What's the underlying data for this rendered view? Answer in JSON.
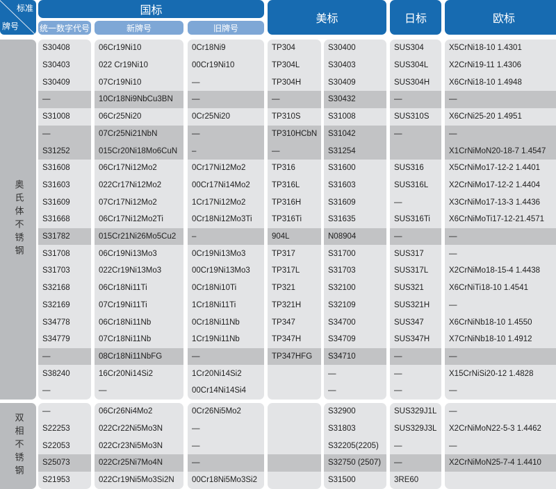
{
  "header": {
    "corner_top": "标准",
    "corner_bottom": "牌号",
    "gb": "国标",
    "gb_sub": [
      "统一数字代号",
      "新牌号",
      "旧牌号"
    ],
    "us": "美标",
    "jp": "日标",
    "eu": "欧标"
  },
  "colors": {
    "header": "#176bb1",
    "subheader": "#7ea7d6",
    "row": "#e3e4e6",
    "row_highlight": "#c2c3c5",
    "side": "#b9bbbe"
  },
  "groups": [
    {
      "label": "奥氏体不锈钢",
      "rows": [
        {
          "c": [
            "S30408",
            "06Cr19Ni10",
            "0Cr18Ni9",
            "TP304",
            "S30400",
            "SUS304",
            "X5CrNi18-10 1.4301"
          ]
        },
        {
          "c": [
            "S30403",
            "022 Cr19Ni10",
            "00Cr19Ni10",
            "TP304L",
            "S30403",
            "SUS304L",
            "X2CrNi19-11  1.4306"
          ]
        },
        {
          "c": [
            "S30409",
            "07Cr19Ni10",
            "—",
            "TP304H",
            "S30409",
            "SUS304H",
            "X6CrNi18-10  1.4948"
          ]
        },
        {
          "c": [
            "—",
            "10Cr18Ni9NbCu3BN",
            "—",
            "—",
            "S30432",
            "—",
            "—"
          ],
          "highlighted": true
        },
        {
          "c": [
            "S31008",
            "06Cr25Ni20",
            "0Cr25Ni20",
            "TP310S",
            "S31008",
            "SUS310S",
            "X6CrNi25-20 1.4951"
          ]
        },
        {
          "c": [
            "—",
            "07Cr25Ni21NbN",
            "—",
            "TP310HCbN",
            "S31042",
            "—",
            "—"
          ],
          "highlighted": true
        },
        {
          "c": [
            "S31252",
            "015Cr20Ni18Mo6CuN",
            "–",
            "—",
            "S31254",
            "",
            "X1CrNiMoN20-18-7 1.4547"
          ],
          "highlighted": true
        },
        {
          "c": [
            "S31608",
            "06Cr17Ni12Mo2",
            "0Cr17Ni12Mo2",
            "TP316",
            "S31600",
            "SUS316",
            "X5CrNiMo17-12-2 1.4401"
          ]
        },
        {
          "c": [
            "S31603",
            "022Cr17Ni12Mo2",
            "00Cr17Ni14Mo2",
            "TP316L",
            "S31603",
            "SUS316L",
            "X2CrNiMo17-12-2 1.4404"
          ]
        },
        {
          "c": [
            "S31609",
            "07Cr17Ni12Mo2",
            "1Cr17Ni12Mo2",
            "TP316H",
            "S31609",
            "—",
            "X3CrNiMo17-13-3 1.4436"
          ]
        },
        {
          "c": [
            "S31668",
            "06Cr17Ni12Mo2Ti",
            "0Cr18Ni12Mo3Ti",
            "TP316Ti",
            "S31635",
            "SUS316Ti",
            "X6CrNiMoTi17-12-21.4571"
          ]
        },
        {
          "c": [
            "S31782",
            "015Cr21Ni26Mo5Cu2",
            "–",
            "904L",
            "N08904",
            "—",
            "—"
          ],
          "highlighted": true
        },
        {
          "c": [
            "S31708",
            "06Cr19Ni13Mo3",
            "0Cr19Ni13Mo3",
            "TP317",
            "S31700",
            "SUS317",
            "—"
          ]
        },
        {
          "c": [
            "S31703",
            "022Cr19Ni13Mo3",
            "00Cr19Ni13Mo3",
            "TP317L",
            "S31703",
            "SUS317L",
            "X2CrNiMo18-15-4 1.4438"
          ]
        },
        {
          "c": [
            "S32168",
            "06Cr18Ni11Ti",
            "0Cr18Ni10Ti",
            "TP321",
            "S32100",
            "SUS321",
            "X6CrNiTi18-10 1.4541"
          ]
        },
        {
          "c": [
            "S32169",
            "07Cr19Ni11Ti",
            "1Cr18Ni11Ti",
            "TP321H",
            "S32109",
            "SUS321H",
            "—"
          ]
        },
        {
          "c": [
            "S34778",
            "06Cr18Ni11Nb",
            "0Cr18Ni11Nb",
            "TP347",
            "S34700",
            "SUS347",
            "X6CrNiNb18-10 1.4550"
          ]
        },
        {
          "c": [
            "S34779",
            "07Cr18Ni11Nb",
            "1Cr19Ni11Nb",
            "TP347H",
            "S34709",
            "SUS347H",
            "X7CrNiNb18-10 1.4912"
          ]
        },
        {
          "c": [
            "—",
            "08Cr18Ni11NbFG",
            "—",
            "TP347HFG",
            "S34710",
            "—",
            "—"
          ],
          "highlighted": true
        },
        {
          "c": [
            "S38240",
            "16Cr20Ni14Si2",
            "1Cr20Ni14Si2",
            "",
            "—",
            "—",
            "X15CrNiSi20-12 1.4828"
          ]
        },
        {
          "c": [
            "—",
            "—",
            "00Cr14Ni14Si4",
            "",
            "—",
            "—",
            "—"
          ]
        }
      ]
    },
    {
      "label": "双相不锈钢",
      "rows": [
        {
          "c": [
            "—",
            "06Cr26Ni4Mo2",
            "0Cr26Ni5Mo2",
            "",
            "S32900",
            "SUS329J1L",
            "—"
          ]
        },
        {
          "c": [
            "S22253",
            "022Cr22Ni5Mo3N",
            "—",
            "",
            "S31803",
            "SUS329J3L",
            "X2CrNiMoN22-5-3 1.4462"
          ]
        },
        {
          "c": [
            "S22053",
            "022Cr23Ni5Mo3N",
            "—",
            "",
            "S32205(2205)",
            "—",
            "—"
          ]
        },
        {
          "c": [
            "S25073",
            "022Cr25Ni7Mo4N",
            "—",
            "",
            "S32750 (2507)",
            "—",
            "X2CrNiMoN25-7-4 1.4410"
          ],
          "highlighted": true
        },
        {
          "c": [
            "S21953",
            "022Cr19Ni5Mo3Si2N",
            "00Cr18Ni5Mo3Si2",
            "",
            "S31500",
            "3RE60",
            ""
          ]
        }
      ]
    }
  ]
}
